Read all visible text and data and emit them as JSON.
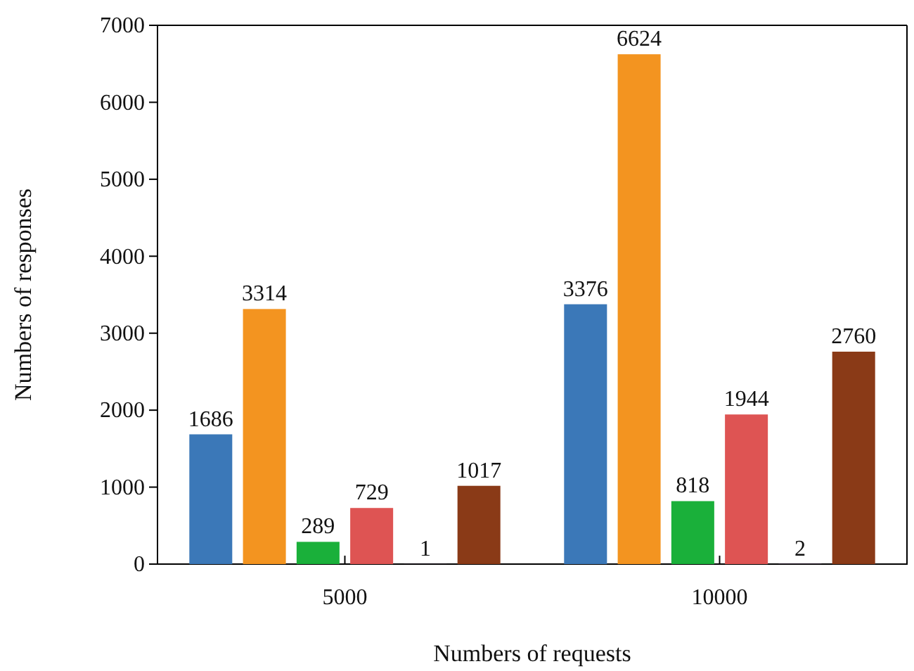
{
  "chart_data": {
    "type": "bar",
    "xlabel": "Numbers of requests",
    "ylabel": "Numbers of responses",
    "categories": [
      "5000",
      "10000"
    ],
    "series": [
      {
        "color": "#3b78b8",
        "values": [
          1686,
          3376
        ]
      },
      {
        "color": "#f39420",
        "values": [
          3314,
          6624
        ]
      },
      {
        "color": "#1ab03a",
        "values": [
          289,
          818
        ]
      },
      {
        "color": "#de5453",
        "values": [
          729,
          1944
        ]
      },
      {
        "color": "#8e5ea2",
        "values": [
          1,
          2
        ]
      },
      {
        "color": "#8a3a17",
        "values": [
          1017,
          2760
        ]
      }
    ],
    "ylim": [
      0,
      7000
    ],
    "yticks": [
      0,
      1000,
      2000,
      3000,
      4000,
      5000,
      6000,
      7000
    ],
    "data_labels": true
  }
}
